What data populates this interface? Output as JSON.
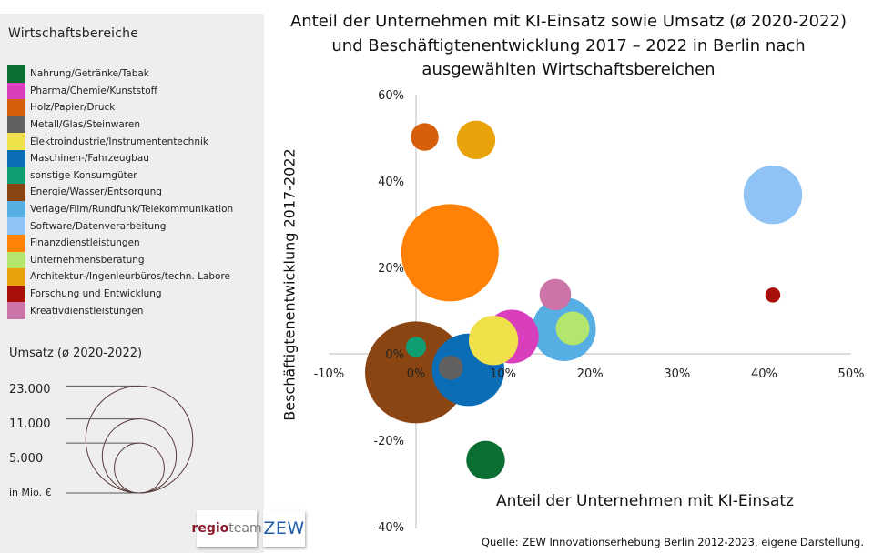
{
  "legend": {
    "title": "Wirtschaftsbereiche",
    "items": [
      {
        "label": "Nahrung/Getränke/Tabak",
        "color": "#0b6e32"
      },
      {
        "label": "Pharma/Chemie/Kunststoff",
        "color": "#d93fbd"
      },
      {
        "label": "Holz/Papier/Druck",
        "color": "#d65f0c"
      },
      {
        "label": "Metall/Glas/Steinwaren",
        "color": "#616161"
      },
      {
        "label": "Elektroindustrie/Instrumententechnik",
        "color": "#f0e04a"
      },
      {
        "label": "Maschinen-/Fahrzeugbau",
        "color": "#0a6db5"
      },
      {
        "label": "sonstige Konsumgüter",
        "color": "#0f9e72"
      },
      {
        "label": "Energie/Wasser/Entsorgung",
        "color": "#8b4512"
      },
      {
        "label": "Verlage/Film/Rundfunk/Telekommunikation",
        "color": "#57aee3"
      },
      {
        "label": "Software/Datenverarbeitung",
        "color": "#90c3f5"
      },
      {
        "label": "Finanzdienstleistungen",
        "color": "#ff8105"
      },
      {
        "label": "Unternehmensberatung",
        "color": "#b4e66e"
      },
      {
        "label": "Architektur-/Ingenieurbüros/techn. Labore",
        "color": "#e8a20a"
      },
      {
        "label": "Forschung und Entwicklung",
        "color": "#a80f0a"
      },
      {
        "label": "Kreativdienstleistungen",
        "color": "#cc73a8"
      }
    ]
  },
  "size_legend": {
    "title": "Umsatz (ø 2020-2022)",
    "unit": "in Mio. €",
    "labels": [
      "23.000",
      "11.000",
      "5.000"
    ],
    "values": [
      23000,
      11000,
      5000
    ],
    "stroke_color": "#5a3a3a"
  },
  "logos": {
    "regio_a": "regio",
    "regio_b": "team",
    "zew": "ZEW"
  },
  "chart_data": {
    "type": "bubble",
    "title": "Anteil der Unternehmen mit KI-Einsatz sowie Umsatz (ø 2020-2022) und Beschäftigtenentwicklung 2017 – 2022 in Berlin nach ausgewählten Wirtschaftsbereichen",
    "title_lines": [
      "Anteil der Unternehmen mit KI-Einsatz sowie Umsatz (ø 2020-2022)",
      "und Beschäftigtenentwicklung 2017 – 2022 in Berlin nach",
      "ausgewählten Wirtschaftsbereichen"
    ],
    "xlabel": "Anteil der Unternehmen mit KI-Einsatz",
    "ylabel": "Beschäftigtenentwicklung 2017-2022",
    "xlim": [
      -10,
      50
    ],
    "ylim": [
      -40,
      60
    ],
    "x_ticks": [
      -10,
      0,
      10,
      20,
      30,
      40,
      50
    ],
    "x_tick_labels": [
      "-10%",
      "0%",
      "10%",
      "20%",
      "30%",
      "40%",
      "50%"
    ],
    "y_ticks": [
      -40,
      -20,
      0,
      20,
      40,
      60
    ],
    "y_tick_labels": [
      "-40%",
      "-20%",
      "0%",
      "20%",
      "40%",
      "60%"
    ],
    "grid": false,
    "source": "Quelle: ZEW Innovationserhebung Berlin 2012-2023, eigene Darstellung.",
    "series": [
      {
        "name": "Energie/Wasser/Entsorgung",
        "x": 0.0,
        "y": -4.3,
        "umsatz": 23000,
        "color": "#8b4512"
      },
      {
        "name": "Finanzdienstleistungen",
        "x": 3.9,
        "y": 23.4,
        "umsatz": 21000,
        "color": "#ff8105"
      },
      {
        "name": "Maschinen-/Fahrzeugbau",
        "x": 6.0,
        "y": -3.7,
        "umsatz": 11600,
        "color": "#0a6db5"
      },
      {
        "name": "Verlage/Film/Rundfunk/Telekommunikation",
        "x": 17.0,
        "y": 5.7,
        "umsatz": 9000,
        "color": "#57aee3"
      },
      {
        "name": "Software/Datenverarbeitung",
        "x": 41.0,
        "y": 36.8,
        "umsatz": 7600,
        "color": "#90c3f5"
      },
      {
        "name": "Pharma/Chemie/Kunststoff",
        "x": 11.0,
        "y": 4.0,
        "umsatz": 6400,
        "color": "#d93fbd"
      },
      {
        "name": "Elektroindustrie/Instrumententechnik",
        "x": 8.9,
        "y": 3.1,
        "umsatz": 5400,
        "color": "#f0e04a"
      },
      {
        "name": "Architektur-/Ingenieurbüros/techn. Labore",
        "x": 6.9,
        "y": 49.5,
        "umsatz": 3300,
        "color": "#e8a20a"
      },
      {
        "name": "Unternehmensberatung",
        "x": 18.0,
        "y": 5.9,
        "umsatz": 2500,
        "color": "#b4e66e"
      },
      {
        "name": "Nahrung/Getränke/Tabak",
        "x": 8.0,
        "y": -24.6,
        "umsatz": 3300,
        "color": "#0b6e32"
      },
      {
        "name": "Kreativdienstleistungen",
        "x": 16.0,
        "y": 13.7,
        "umsatz": 2200,
        "color": "#cc73a8"
      },
      {
        "name": "Holz/Papier/Druck",
        "x": 1.0,
        "y": 50.2,
        "umsatz": 1700,
        "color": "#d65f0c"
      },
      {
        "name": "Metall/Glas/Steinwaren",
        "x": 4.0,
        "y": -3.2,
        "umsatz": 1300,
        "color": "#616161"
      },
      {
        "name": "sonstige Konsumgüter",
        "x": 0.0,
        "y": 1.6,
        "umsatz": 900,
        "color": "#0f9e72"
      },
      {
        "name": "Forschung und Entwicklung",
        "x": 41.0,
        "y": 13.6,
        "umsatz": 500,
        "color": "#a80f0a"
      }
    ]
  }
}
